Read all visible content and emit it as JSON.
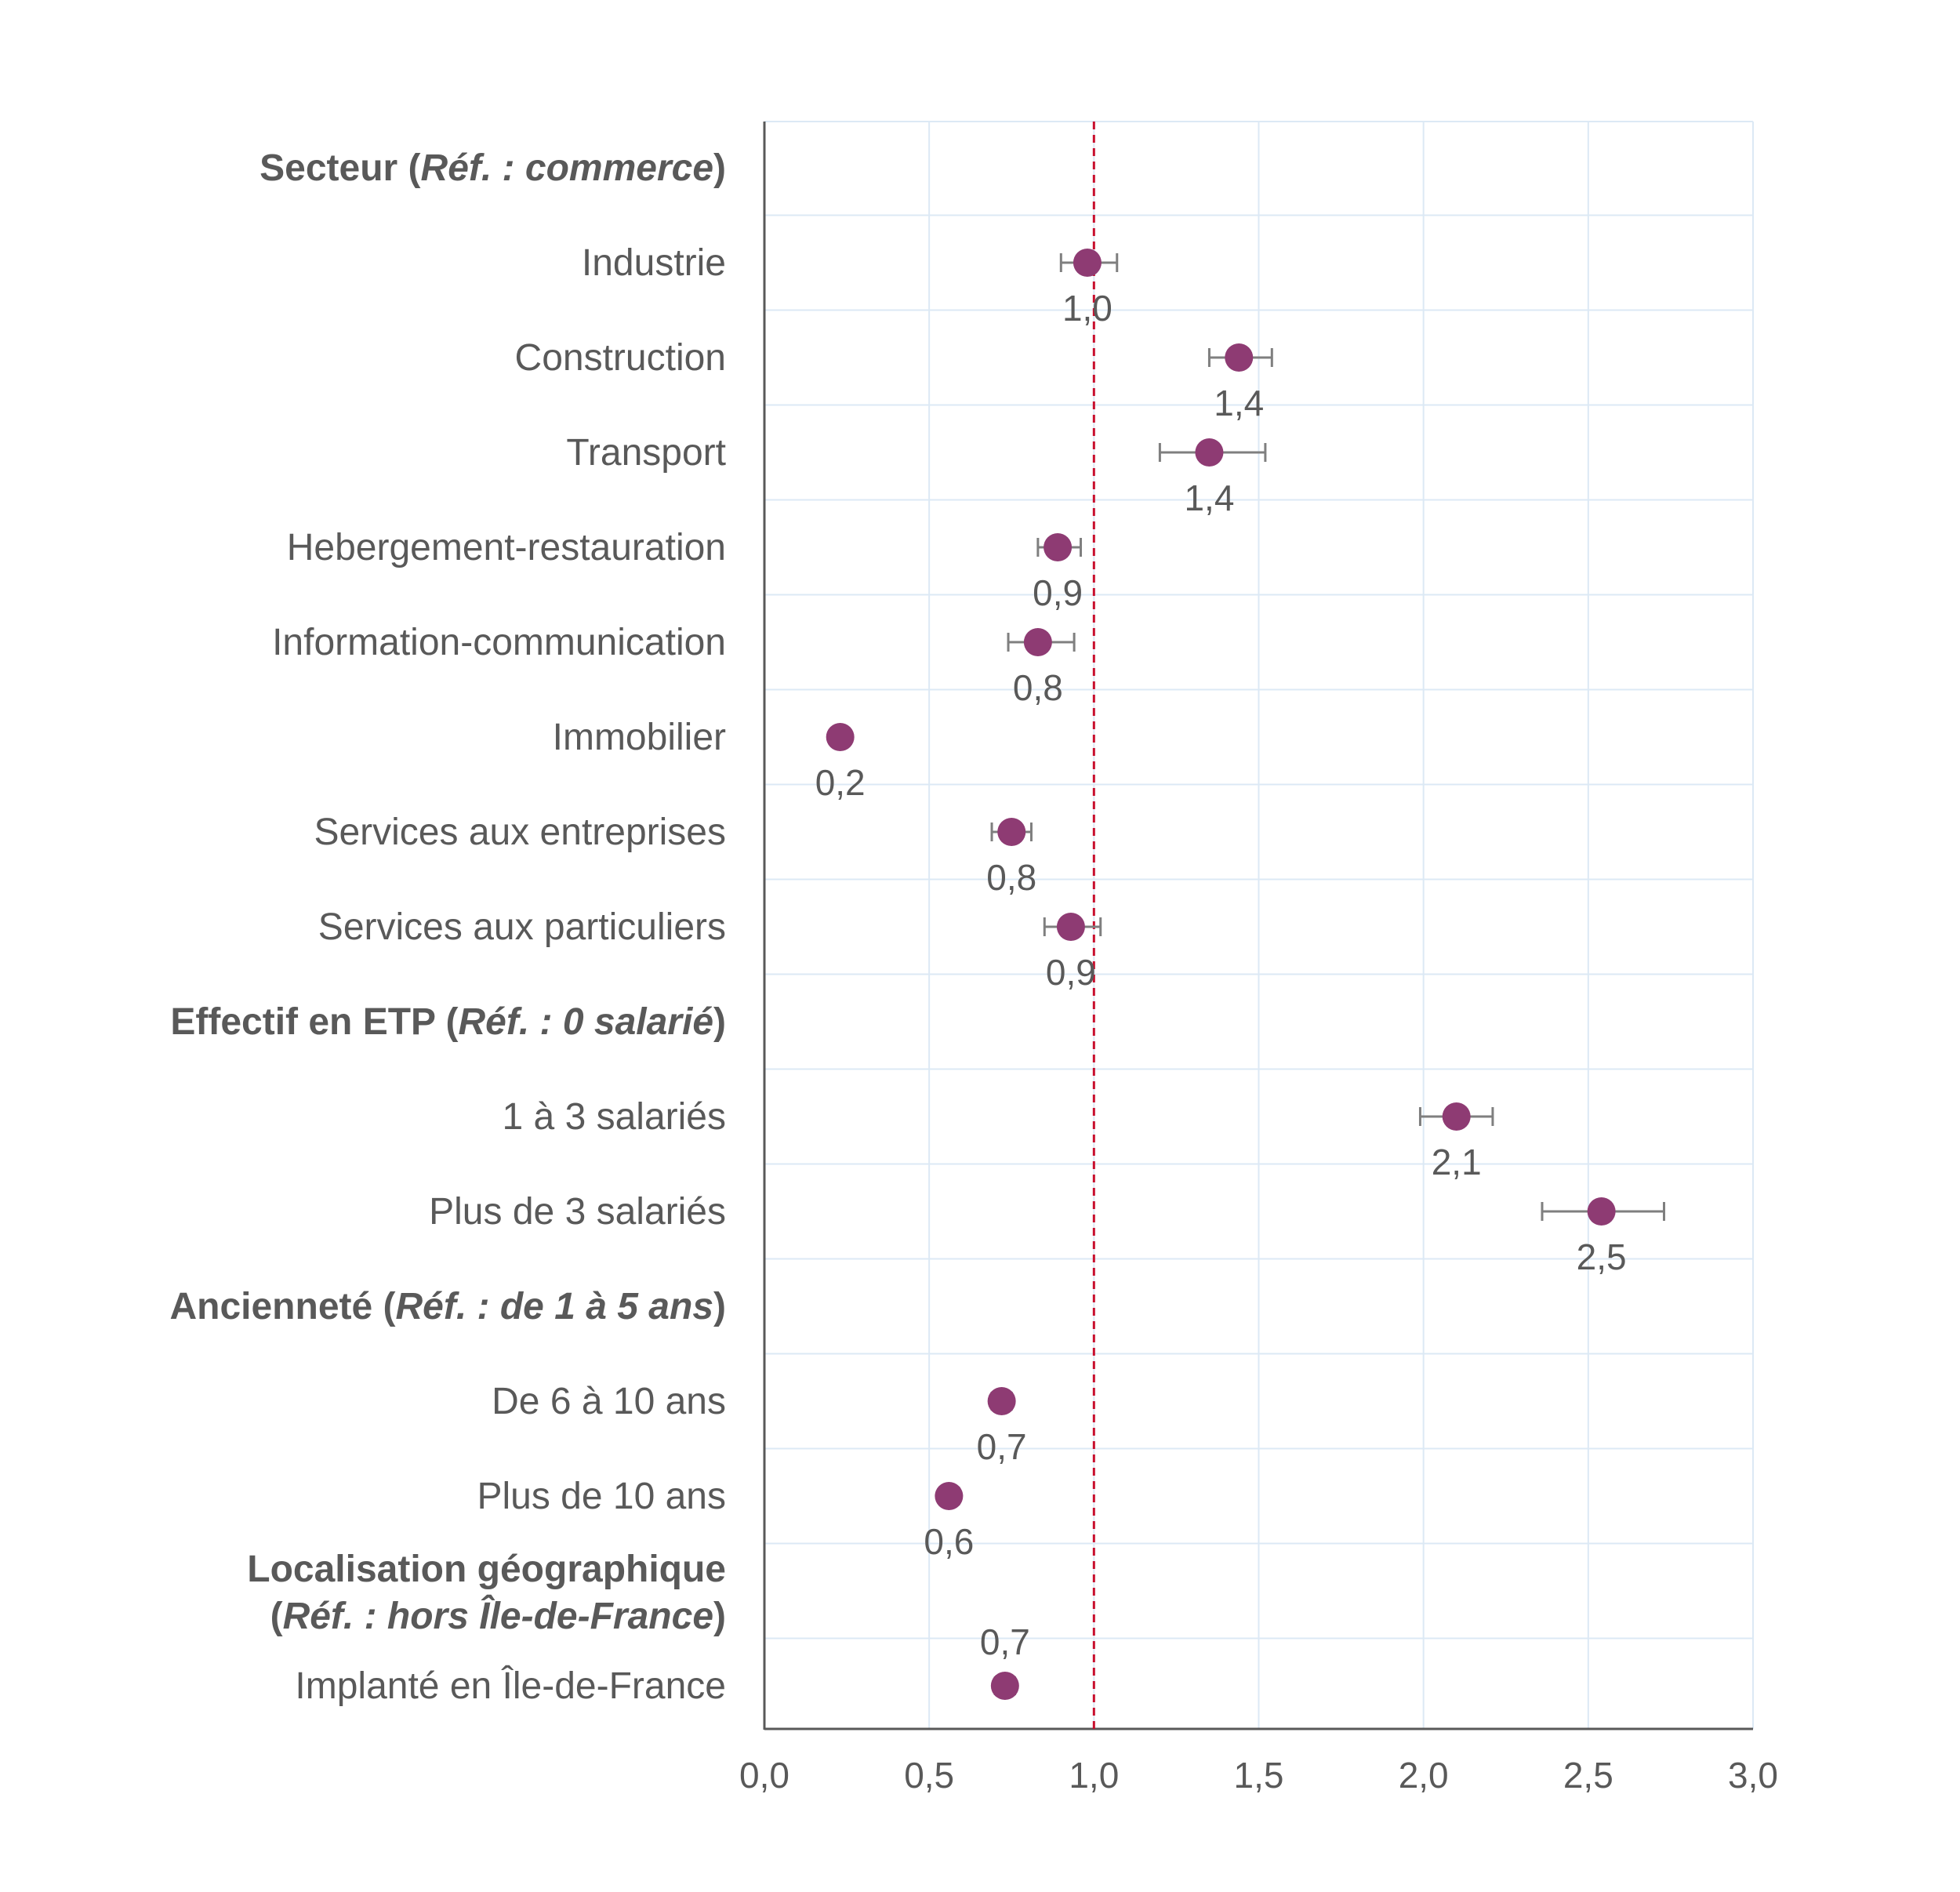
{
  "chart_data": {
    "type": "scatter",
    "subtype": "odds-ratio forest plot with confidence intervals",
    "xlim": [
      0,
      3
    ],
    "x_ticks": [
      "0,0",
      "0,5",
      "1,0",
      "1,5",
      "2,0",
      "2,5",
      "3,0"
    ],
    "x_tick_values": [
      0,
      0.5,
      1,
      1.5,
      2,
      2.5,
      3
    ],
    "reference_line": {
      "value": 1.0,
      "style": "dashed",
      "color": "#c8102e"
    },
    "grid": true,
    "colors": {
      "point": "#8e3b73",
      "error_bar": "#7f7f7f",
      "grid": "#dce9f5",
      "axis": "#595959",
      "text": "#595959"
    },
    "rows": [
      {
        "kind": "header",
        "bold": "Secteur (",
        "italic": "Réf. : commerce",
        "close": ")"
      },
      {
        "kind": "item",
        "label": "Industrie",
        "value": 0.98,
        "ci": [
          0.9,
          1.07
        ],
        "value_label": "1,0"
      },
      {
        "kind": "item",
        "label": "Construction",
        "value": 1.44,
        "ci": [
          1.35,
          1.54
        ],
        "value_label": "1,4"
      },
      {
        "kind": "item",
        "label": "Transport",
        "value": 1.35,
        "ci": [
          1.2,
          1.52
        ],
        "value_label": "1,4"
      },
      {
        "kind": "item",
        "label": "Hebergement-restauration",
        "value": 0.89,
        "ci": [
          0.83,
          0.96
        ],
        "value_label": "0,9"
      },
      {
        "kind": "item",
        "label": "Information-communication",
        "value": 0.83,
        "ci": [
          0.74,
          0.94
        ],
        "value_label": "0,8"
      },
      {
        "kind": "item",
        "label": "Immobilier",
        "value": 0.23,
        "ci": [
          0.21,
          0.25
        ],
        "value_label": "0,2"
      },
      {
        "kind": "item",
        "label": "Services aux entreprises",
        "value": 0.75,
        "ci": [
          0.69,
          0.81
        ],
        "value_label": "0,8"
      },
      {
        "kind": "item",
        "label": "Services aux particuliers",
        "value": 0.93,
        "ci": [
          0.85,
          1.02
        ],
        "value_label": "0,9"
      },
      {
        "kind": "header",
        "bold": "Effectif en ETP (",
        "italic": "Réf. : 0 salarié",
        "close": ")"
      },
      {
        "kind": "item",
        "label": "1 à 3 salariés",
        "value": 2.1,
        "ci": [
          1.99,
          2.21
        ],
        "value_label": "2,1"
      },
      {
        "kind": "item",
        "label": "Plus de 3 salariés",
        "value": 2.54,
        "ci": [
          2.36,
          2.73
        ],
        "value_label": "2,5"
      },
      {
        "kind": "header",
        "bold": "Ancienneté (",
        "italic": "Réf. : de 1 à 5 ans",
        "close": ")"
      },
      {
        "kind": "item",
        "label": "De 6 à 10 ans",
        "value": 0.72,
        "ci": [
          0.69,
          0.75
        ],
        "value_label": "0,7"
      },
      {
        "kind": "item",
        "label": "Plus de 10 ans",
        "value": 0.56,
        "ci": [
          0.54,
          0.59
        ],
        "value_label": "0,6"
      },
      {
        "kind": "header2",
        "line1": "Localisation géographique",
        "line2_open": "(",
        "line2_italic": "Réf. : hors Île-de-France",
        "line2_close": ")"
      },
      {
        "kind": "item",
        "label": "Implanté en Île-de-France",
        "value": 0.73,
        "ci": [
          0.7,
          0.76
        ],
        "value_label": "0,7",
        "label_above": true
      }
    ]
  }
}
